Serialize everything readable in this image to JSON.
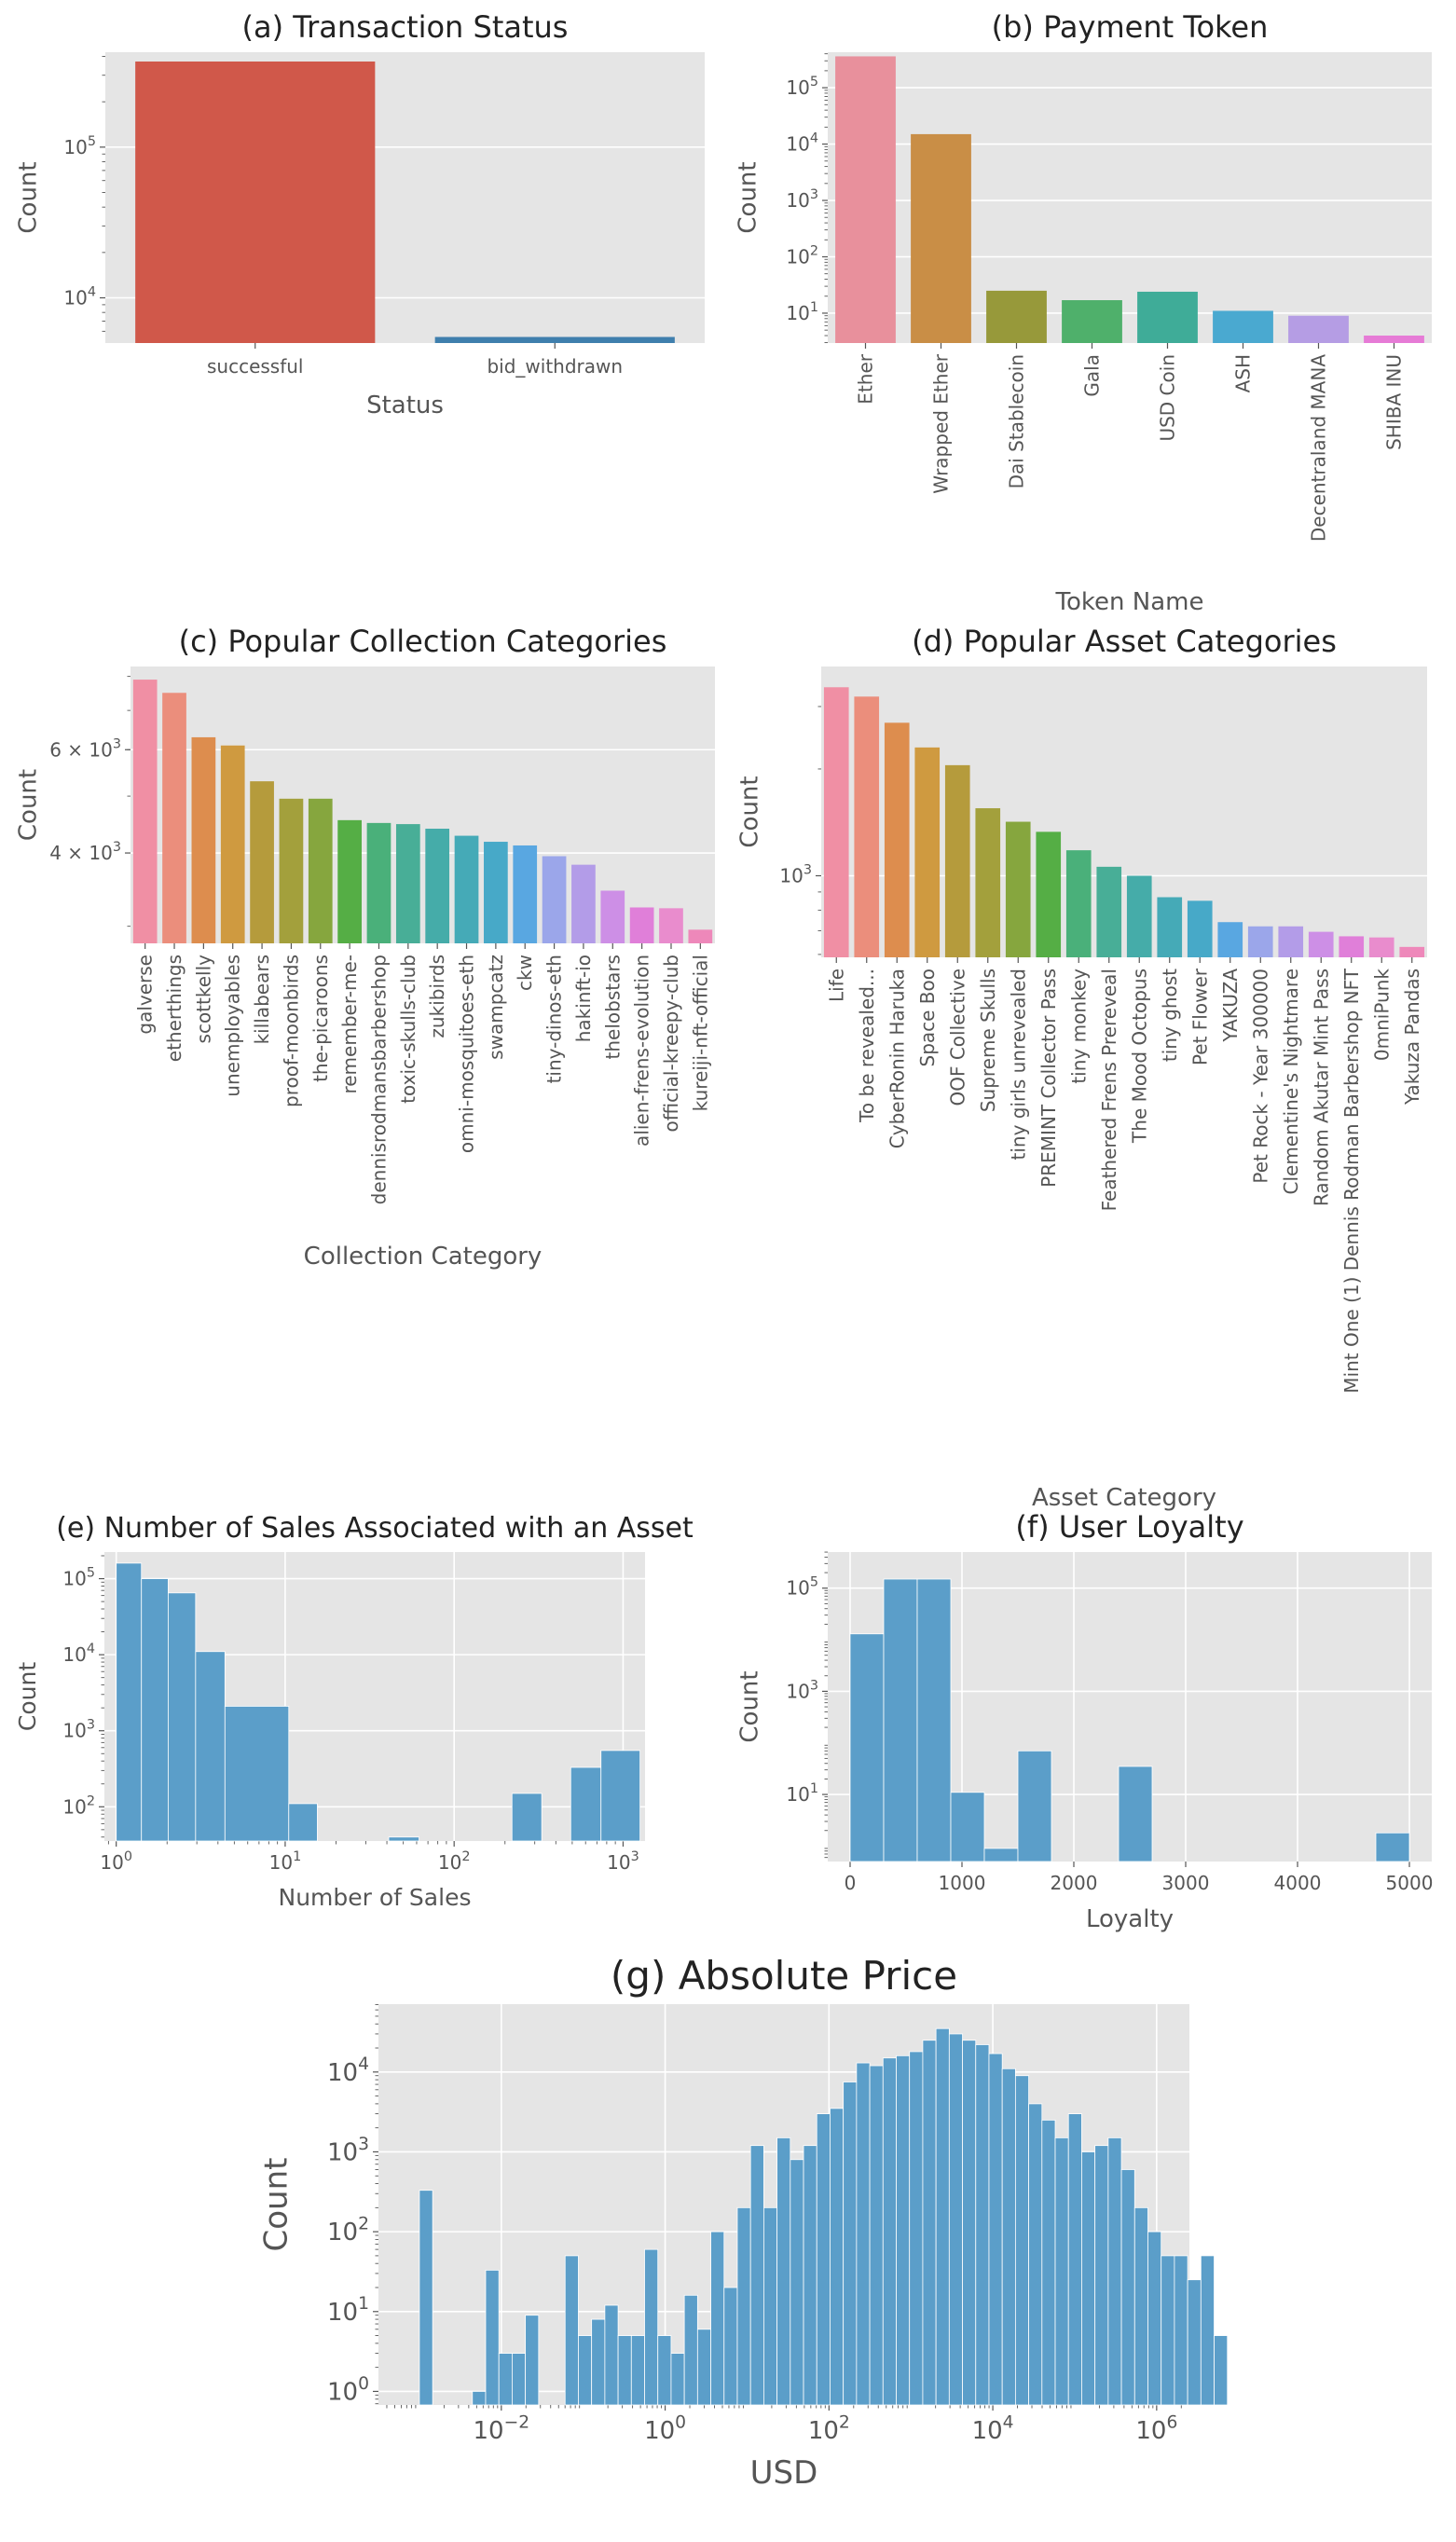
{
  "colors": {
    "panel_bg": "#e5e5e5",
    "grid": "#ffffff",
    "text": "#555555",
    "title": "#222222",
    "hist": "#5b9ec9",
    "status": [
      "#d0584a",
      "#3f7fad"
    ],
    "token": [
      "#e8909c",
      "#c98e46",
      "#97993a",
      "#4fb06b",
      "#3fac98",
      "#4aa9d0",
      "#b59de4",
      "#e67bd6"
    ],
    "husl20": [
      "#f08fa4",
      "#eb8e7c",
      "#dd8d4e",
      "#cf9a40",
      "#b59b3c",
      "#a3a03c",
      "#86a63e",
      "#55ae45",
      "#4ab07a",
      "#48ae97",
      "#45aca9",
      "#45aab7",
      "#47a9c8",
      "#59a7e1",
      "#9ba6ea",
      "#b39ce8",
      "#cd8fe6",
      "#e07fd9",
      "#e98ccd",
      "#ee88ba"
    ]
  },
  "chart_data": [
    {
      "id": "a",
      "type": "bar",
      "title": "(a) Transaction Status",
      "xlabel": "Status",
      "ylabel": "Count",
      "yscale": "log",
      "categories": [
        "successful",
        "bid_withdrawn"
      ],
      "values": [
        370000,
        5500
      ],
      "yticks": [
        {
          "v": 10000,
          "label": "10",
          "exp": "4"
        },
        {
          "v": 100000,
          "label": "10",
          "exp": "5"
        }
      ]
    },
    {
      "id": "b",
      "type": "bar",
      "title": "(b) Payment Token",
      "xlabel": "Token Name",
      "ylabel": "Count",
      "yscale": "log",
      "categories": [
        "Ether",
        "Wrapped Ether",
        "Dai Stablecoin",
        "Gala",
        "USD Coin",
        "ASH",
        "Decentraland MANA",
        "SHIBA INU"
      ],
      "values": [
        360000,
        15000,
        25,
        17,
        24,
        11,
        9,
        4
      ],
      "yticks": [
        {
          "v": 10,
          "label": "10",
          "exp": "1"
        },
        {
          "v": 100,
          "label": "10",
          "exp": "2"
        },
        {
          "v": 1000,
          "label": "10",
          "exp": "3"
        },
        {
          "v": 10000,
          "label": "10",
          "exp": "4"
        },
        {
          "v": 100000,
          "label": "10",
          "exp": "5"
        }
      ]
    },
    {
      "id": "c",
      "type": "bar",
      "title": "(c) Popular Collection Categories",
      "xlabel": "Collection Category",
      "ylabel": "Count",
      "yscale": "log",
      "categories": [
        "galverse",
        "etherthings",
        "scottkelly",
        "unemployables",
        "killabears",
        "proof-moonbirds",
        "the-picaroons",
        "remember-me-",
        "dennisrodmansbarbershop",
        "toxic-skulls-club",
        "zukibirds",
        "omni-mosquitoes-eth",
        "swampcatz",
        "ckw",
        "tiny-dinos-eth",
        "hakinft-io",
        "thelobstars",
        "alien-frens-evolution",
        "official-kreepy-club",
        "kureiji-nft-official"
      ],
      "values": [
        7900,
        7500,
        6300,
        6100,
        5300,
        4950,
        4950,
        4550,
        4500,
        4480,
        4400,
        4280,
        4180,
        4120,
        3950,
        3820,
        3450,
        3230,
        3220,
        2960
      ],
      "yticks": [
        {
          "v": 4000,
          "label": "4 × 10",
          "exp": "3"
        },
        {
          "v": 6000,
          "label": "6 × 10",
          "exp": "3"
        }
      ]
    },
    {
      "id": "d",
      "type": "bar",
      "title": "(d) Popular Asset Categories",
      "xlabel": "Asset Category",
      "ylabel": "Count",
      "yscale": "log",
      "categories": [
        "Life",
        "To be revealed...",
        "CyberRonin Haruka",
        "Space Boo",
        "OOF Collective",
        "Supreme Skulls",
        "tiny girls unrevealed",
        "PREMINT Collector Pass",
        "tiny monkey",
        "Feathered Frens Prereveal",
        "The Mood Octopus",
        "tiny ghost",
        "Pet Flower",
        "YAKUZA",
        "Pet Rock - Year 300000",
        "Clementine's Nightmare",
        "Random Akutar Mint Pass",
        "Mint One (1) Dennis Rodman Barbershop NFT",
        "0mniPunk",
        "Yakuza Pandas"
      ],
      "values": [
        3400,
        3200,
        2700,
        2300,
        2050,
        1550,
        1420,
        1330,
        1180,
        1060,
        1000,
        870,
        850,
        740,
        720,
        720,
        695,
        675,
        670,
        630
      ],
      "yticks": [
        {
          "v": 1000,
          "label": "10",
          "exp": "3"
        }
      ]
    },
    {
      "id": "e",
      "type": "histogram",
      "title": "(e) Number of Sales Associated with an Asset",
      "xlabel": "Number of Sales",
      "ylabel": "Count",
      "xscale": "log",
      "yscale": "log",
      "bins": [
        {
          "x0": 1,
          "x1": 1.41,
          "count": 160000
        },
        {
          "x0": 1.41,
          "x1": 2.03,
          "count": 100000
        },
        {
          "x0": 2.03,
          "x1": 2.95,
          "count": 65000
        },
        {
          "x0": 2.95,
          "x1": 4.4,
          "count": 11000
        },
        {
          "x0": 4.4,
          "x1": 10.5,
          "count": 2100
        },
        {
          "x0": 10.5,
          "x1": 15.5,
          "count": 110
        },
        {
          "x0": 41,
          "x1": 62,
          "count": 40
        },
        {
          "x0": 220,
          "x1": 330,
          "count": 150
        },
        {
          "x0": 490,
          "x1": 740,
          "count": 330
        },
        {
          "x0": 740,
          "x1": 1260,
          "count": 550
        }
      ],
      "xticks": [
        {
          "v": 1,
          "label": "10",
          "exp": "0"
        },
        {
          "v": 10,
          "label": "10",
          "exp": "1"
        },
        {
          "v": 100,
          "label": "10",
          "exp": "2"
        },
        {
          "v": 1000,
          "label": "10",
          "exp": "3"
        }
      ],
      "yticks": [
        {
          "v": 100,
          "label": "10",
          "exp": "2"
        },
        {
          "v": 1000,
          "label": "10",
          "exp": "3"
        },
        {
          "v": 10000,
          "label": "10",
          "exp": "4"
        },
        {
          "v": 100000,
          "label": "10",
          "exp": "5"
        }
      ]
    },
    {
      "id": "f",
      "type": "histogram",
      "title": "(f) User Loyalty",
      "xlabel": "Loyalty",
      "ylabel": "Count",
      "xscale": "linear",
      "yscale": "log",
      "bins": [
        {
          "x0": 0,
          "x1": 300,
          "count": 13000
        },
        {
          "x0": 300,
          "x1": 600,
          "count": 150000
        },
        {
          "x0": 600,
          "x1": 900,
          "count": 150000
        },
        {
          "x0": 900,
          "x1": 1200,
          "count": 11
        },
        {
          "x0": 1200,
          "x1": 1500,
          "count": 0.9
        },
        {
          "x0": 1500,
          "x1": 1800,
          "count": 70
        },
        {
          "x0": 2400,
          "x1": 2700,
          "count": 35
        },
        {
          "x0": 4700,
          "x1": 5000,
          "count": 1.8
        }
      ],
      "xticks": [
        {
          "v": 0,
          "label": "0"
        },
        {
          "v": 1000,
          "label": "1000"
        },
        {
          "v": 2000,
          "label": "2000"
        },
        {
          "v": 3000,
          "label": "3000"
        },
        {
          "v": 4000,
          "label": "4000"
        },
        {
          "v": 5000,
          "label": "5000"
        }
      ],
      "yticks": [
        {
          "v": 10,
          "label": "10",
          "exp": "1"
        },
        {
          "v": 1000,
          "label": "10",
          "exp": "3"
        },
        {
          "v": 100000,
          "label": "10",
          "exp": "5"
        }
      ]
    },
    {
      "id": "g",
      "type": "histogram",
      "title": "(g) Absolute Price",
      "xlabel": "USD",
      "ylabel": "Count",
      "xscale": "log",
      "yscale": "log",
      "bin_log_start": -3,
      "bin_log_width": 0.1617,
      "counts": [
        330,
        0,
        0,
        0,
        1,
        33,
        3,
        3,
        9,
        0,
        0,
        50,
        5,
        8,
        12,
        5,
        5,
        60,
        5,
        3,
        16,
        6,
        100,
        20,
        200,
        1200,
        200,
        1500,
        800,
        1200,
        3000,
        3500,
        7500,
        13000,
        12000,
        15000,
        16000,
        18000,
        25000,
        35000,
        30000,
        25000,
        22000,
        17000,
        11000,
        9000,
        4000,
        2500,
        1500,
        3000,
        1000,
        1200,
        1500,
        600,
        200,
        100,
        50,
        50,
        25,
        50,
        5
      ],
      "xticks": [
        {
          "v": 0.01,
          "label": "10",
          "exp": "−2"
        },
        {
          "v": 1,
          "label": "10",
          "exp": "0"
        },
        {
          "v": 100,
          "label": "10",
          "exp": "2"
        },
        {
          "v": 10000,
          "label": "10",
          "exp": "4"
        },
        {
          "v": 1000000,
          "label": "10",
          "exp": "6"
        }
      ],
      "yticks": [
        {
          "v": 1,
          "label": "10",
          "exp": "0"
        },
        {
          "v": 10,
          "label": "10",
          "exp": "1"
        },
        {
          "v": 100,
          "label": "10",
          "exp": "2"
        },
        {
          "v": 1000,
          "label": "10",
          "exp": "3"
        },
        {
          "v": 10000,
          "label": "10",
          "exp": "4"
        }
      ]
    }
  ]
}
